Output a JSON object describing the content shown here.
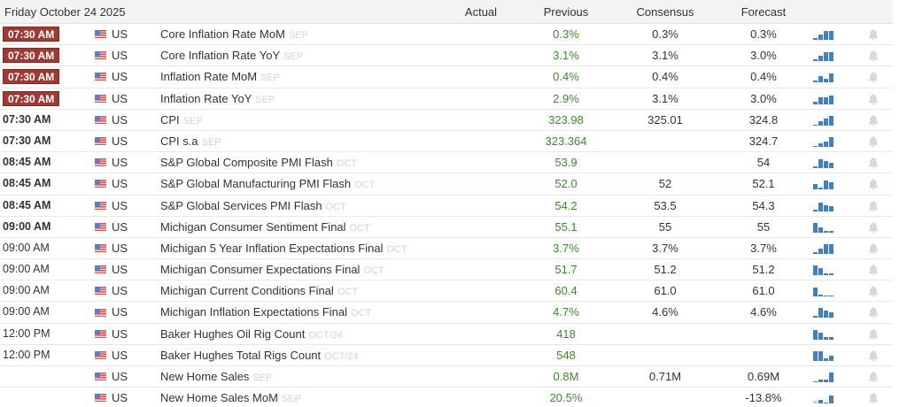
{
  "header": {
    "date": "Friday October 24 2025",
    "columns": {
      "actual": "Actual",
      "previous": "Previous",
      "consensus": "Consensus",
      "forecast": "Forecast"
    }
  },
  "colors": {
    "badge_bg": "#9c3a33",
    "previous_text": "#3c8a2e",
    "sparkline": "#4a7fb5",
    "sparkline_negative": "#f2c79a",
    "reference_text": "#d2d2d2",
    "bell": "#d8d8d8"
  },
  "rows": [
    {
      "time": "07:30 AM",
      "time_style": "badge",
      "country": "US",
      "event": "Core Inflation Rate MoM",
      "ref": "SEP",
      "actual": "",
      "previous": "0.3%",
      "consensus": "0.3%",
      "forecast": "0.3%",
      "spark": [
        2,
        6,
        10,
        10
      ]
    },
    {
      "time": "07:30 AM",
      "time_style": "badge",
      "country": "US",
      "event": "Core Inflation Rate YoY",
      "ref": "SEP",
      "actual": "",
      "previous": "3.1%",
      "consensus": "3.1%",
      "forecast": "3.0%",
      "spark": [
        2,
        6,
        10,
        10
      ]
    },
    {
      "time": "07:30 AM",
      "time_style": "badge",
      "country": "US",
      "event": "Inflation Rate MoM",
      "ref": "SEP",
      "actual": "",
      "previous": "0.4%",
      "consensus": "0.4%",
      "forecast": "0.4%",
      "spark": [
        2,
        7,
        4,
        10
      ]
    },
    {
      "time": "07:30 AM",
      "time_style": "badge",
      "country": "US",
      "event": "Inflation Rate YoY",
      "ref": "SEP",
      "actual": "",
      "previous": "2.9%",
      "consensus": "3.1%",
      "forecast": "3.0%",
      "spark": [
        3,
        8,
        8,
        10
      ]
    },
    {
      "time": "07:30 AM",
      "time_style": "bold",
      "country": "US",
      "event": "CPI",
      "ref": "SEP",
      "actual": "",
      "previous": "323.98",
      "consensus": "325.01",
      "forecast": "324.8",
      "spark": [
        1,
        5,
        8,
        11
      ]
    },
    {
      "time": "07:30 AM",
      "time_style": "bold",
      "country": "US",
      "event": "CPI s.a",
      "ref": "SEP",
      "actual": "",
      "previous": "323.364",
      "consensus": "",
      "forecast": "324.7",
      "spark": [
        1,
        4,
        6,
        11
      ]
    },
    {
      "time": "08:45 AM",
      "time_style": "bold",
      "country": "US",
      "event": "S&P Global Composite PMI Flash",
      "ref": "OCT",
      "actual": "",
      "previous": "53.9",
      "consensus": "",
      "forecast": "54",
      "spark": [
        2,
        10,
        8,
        6
      ]
    },
    {
      "time": "08:45 AM",
      "time_style": "bold",
      "country": "US",
      "event": "S&P Global Manufacturing PMI Flash",
      "ref": "OCT",
      "actual": "",
      "previous": "52.0",
      "consensus": "52",
      "forecast": "52.1",
      "spark": [
        6,
        2,
        10,
        8
      ]
    },
    {
      "time": "08:45 AM",
      "time_style": "bold",
      "country": "US",
      "event": "S&P Global Services PMI Flash",
      "ref": "OCT",
      "actual": "",
      "previous": "54.2",
      "consensus": "53.5",
      "forecast": "54.3",
      "spark": [
        2,
        10,
        7,
        6
      ]
    },
    {
      "time": "09:00 AM",
      "time_style": "bold",
      "country": "US",
      "event": "Michigan Consumer Sentiment Final",
      "ref": "OCT",
      "actual": "",
      "previous": "55.1",
      "consensus": "55",
      "forecast": "55",
      "spark": [
        11,
        6,
        2,
        2
      ]
    },
    {
      "time": "09:00 AM",
      "time_style": "plain",
      "country": "US",
      "event": "Michigan 5 Year Inflation Expectations Final",
      "ref": "OCT",
      "actual": "",
      "previous": "3.7%",
      "consensus": "3.7%",
      "forecast": "3.7%",
      "spark": [
        2,
        6,
        11,
        11
      ]
    },
    {
      "time": "09:00 AM",
      "time_style": "plain",
      "country": "US",
      "event": "Michigan Consumer Expectations Final",
      "ref": "OCT",
      "actual": "",
      "previous": "51.7",
      "consensus": "51.2",
      "forecast": "51.2",
      "spark": [
        11,
        8,
        2,
        2
      ]
    },
    {
      "time": "09:00 AM",
      "time_style": "plain",
      "country": "US",
      "event": "Michigan Current Conditions Final",
      "ref": "OCT",
      "actual": "",
      "previous": "60.4",
      "consensus": "61.0",
      "forecast": "61.0",
      "spark": [
        10,
        2,
        1,
        1
      ]
    },
    {
      "time": "09:00 AM",
      "time_style": "plain",
      "country": "US",
      "event": "Michigan Inflation Expectations Final",
      "ref": "OCT",
      "actual": "",
      "previous": "4.7%",
      "consensus": "4.6%",
      "forecast": "4.6%",
      "spark": [
        2,
        11,
        8,
        6
      ]
    },
    {
      "time": "12:00 PM",
      "time_style": "plain",
      "country": "US",
      "event": "Baker Hughes Oil Rig Count",
      "ref": "OCT/24",
      "actual": "",
      "previous": "418",
      "consensus": "",
      "forecast": "",
      "spark": [
        11,
        8,
        3,
        3
      ]
    },
    {
      "time": "12:00 PM",
      "time_style": "plain",
      "country": "US",
      "event": "Baker Hughes Total Rigs Count",
      "ref": "OCT/24",
      "actual": "",
      "previous": "548",
      "consensus": "",
      "forecast": "",
      "spark": [
        11,
        11,
        3,
        6
      ]
    },
    {
      "time": "",
      "time_style": "plain",
      "country": "US",
      "event": "New Home Sales",
      "ref": "SEP",
      "actual": "",
      "previous": "0.8M",
      "consensus": "0.71M",
      "forecast": "0.69M",
      "spark": [
        1,
        3,
        3,
        11
      ]
    },
    {
      "time": "",
      "time_style": "plain",
      "country": "US",
      "event": "New Home Sales MoM",
      "ref": "SEP",
      "actual": "",
      "previous": "20.5%",
      "consensus": "",
      "forecast": "-13.8%",
      "spark": [
        -3,
        4,
        1,
        9
      ]
    }
  ]
}
